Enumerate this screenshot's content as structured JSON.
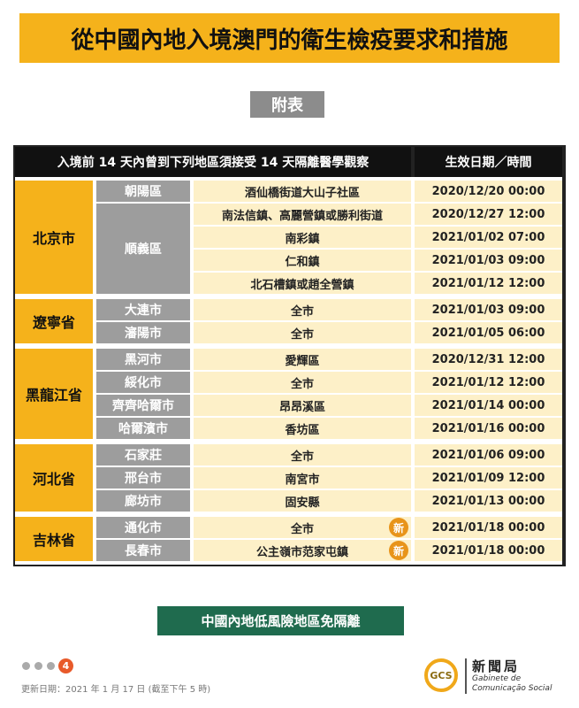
{
  "header": {
    "title": "從中國內地入境澳門的衛生檢疫要求和措施",
    "subtitle": "附表"
  },
  "table": {
    "columns": [
      "入境前 14 天內曾到下列地區須接受 14 天隔離醫學觀察",
      "生效日期／時間"
    ],
    "groups": [
      {
        "province": "北京市",
        "cities": [
          {
            "city": "朝陽區",
            "rows": [
              {
                "area": "酒仙橋街道大山子社區",
                "date": "2020/12/20 00:00"
              }
            ]
          },
          {
            "city": "順義區",
            "rows": [
              {
                "area": "南法信鎮、高麗營鎮或勝利街道",
                "date": "2020/12/27 12:00"
              },
              {
                "area": "南彩鎮",
                "date": "2021/01/02 07:00"
              },
              {
                "area": "仁和鎮",
                "date": "2021/01/03 09:00"
              },
              {
                "area": "北石槽鎮或趙全營鎮",
                "date": "2021/01/12 12:00"
              }
            ]
          }
        ]
      },
      {
        "province": "遼寧省",
        "cities": [
          {
            "city": "大連市",
            "rows": [
              {
                "area": "全市",
                "date": "2021/01/03 09:00"
              }
            ]
          },
          {
            "city": "瀋陽市",
            "rows": [
              {
                "area": "全市",
                "date": "2021/01/05 06:00"
              }
            ]
          }
        ]
      },
      {
        "province": "黑龍江省",
        "cities": [
          {
            "city": "黑河市",
            "rows": [
              {
                "area": "愛輝區",
                "date": "2020/12/31 12:00"
              }
            ]
          },
          {
            "city": "綏化市",
            "rows": [
              {
                "area": "全市",
                "date": "2021/01/12 12:00"
              }
            ]
          },
          {
            "city": "齊齊哈爾市",
            "rows": [
              {
                "area": "昂昂溪區",
                "date": "2021/01/14 00:00"
              }
            ]
          },
          {
            "city": "哈爾濱市",
            "rows": [
              {
                "area": "香坊區",
                "date": "2021/01/16 00:00"
              }
            ]
          }
        ]
      },
      {
        "province": "河北省",
        "cities": [
          {
            "city": "石家莊",
            "rows": [
              {
                "area": "全市",
                "date": "2021/01/06 09:00"
              }
            ]
          },
          {
            "city": "邢台市",
            "rows": [
              {
                "area": "南宮市",
                "date": "2021/01/09 12:00"
              }
            ]
          },
          {
            "city": "廊坊市",
            "rows": [
              {
                "area": "固安縣",
                "date": "2021/01/13 00:00"
              }
            ]
          }
        ]
      },
      {
        "province": "吉林省",
        "cities": [
          {
            "city": "通化市",
            "rows": [
              {
                "area": "全市",
                "badge": "新",
                "date": "2021/01/18 00:00"
              }
            ]
          },
          {
            "city": "長春市",
            "rows": [
              {
                "area": "公主嶺市范家屯鎮",
                "badge": "新",
                "date": "2021/01/18 00:00"
              }
            ]
          }
        ]
      }
    ]
  },
  "footer": {
    "button": "中國內地低風險地區免隔離",
    "page": "4",
    "updated": "更新日期：2021 年 1 月 17 日 (截至下午 5 時)",
    "logo": {
      "mark": "GCS",
      "name": "新聞局",
      "line1": "Gabinete de",
      "line2": "Comunicação Social"
    }
  }
}
